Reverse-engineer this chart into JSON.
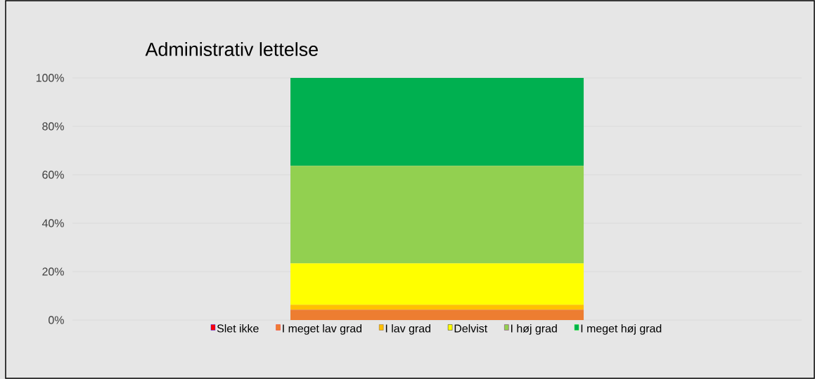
{
  "chart_data": {
    "type": "bar",
    "title": "Administrativ lettelse",
    "stacked": true,
    "categories": [
      null
    ],
    "series": [
      {
        "name": "Slet ikke",
        "color": "#ff0000",
        "values": [
          0
        ]
      },
      {
        "name": "I meget lav grad",
        "color": "#ed7d31",
        "values": [
          4.3
        ]
      },
      {
        "name": "I lav grad",
        "color": "#ffc000",
        "values": [
          2.0
        ]
      },
      {
        "name": "Delvist",
        "color": "#ffff00",
        "values": [
          17.1
        ]
      },
      {
        "name": "I høj grad",
        "color": "#92d050",
        "values": [
          40.3
        ]
      },
      {
        "name": "I meget høj grad",
        "color": "#00b050",
        "values": [
          36.3
        ]
      }
    ],
    "ylim": [
      0,
      100
    ],
    "yticks": [
      {
        "value": 0,
        "label": "0%"
      },
      {
        "value": 20,
        "label": "20%"
      },
      {
        "value": 40,
        "label": "40%"
      },
      {
        "value": 60,
        "label": "60%"
      },
      {
        "value": 80,
        "label": "80%"
      },
      {
        "value": 100,
        "label": "100%"
      }
    ],
    "grid": "y",
    "legend": "bottom"
  }
}
